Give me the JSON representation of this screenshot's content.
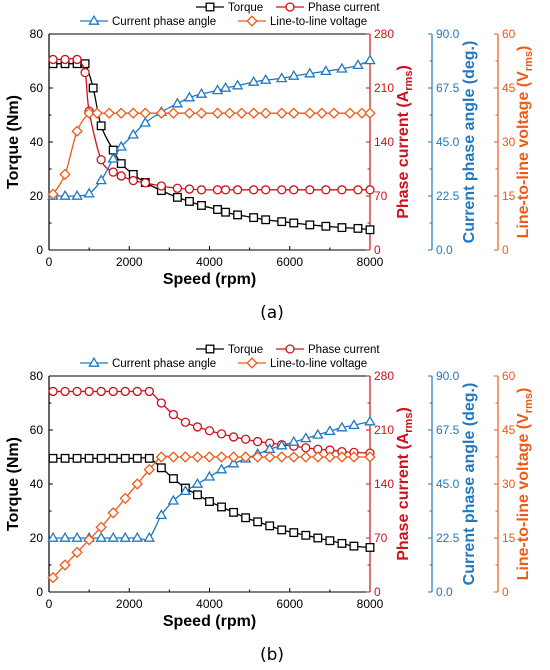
{
  "chart_data": [
    {
      "panel_label": "(a)",
      "type": "line",
      "xlabel": "Speed (rpm)",
      "xlim": [
        0,
        8000
      ],
      "x_ticks": [
        "0",
        "2000",
        "4000",
        "6000",
        "8000"
      ],
      "axes": [
        {
          "id": "torque",
          "label": "Torque (Nm)",
          "side": "left",
          "color": "#000000",
          "lim": [
            0,
            80
          ],
          "ticks": [
            "0",
            "20",
            "40",
            "60",
            "80"
          ]
        },
        {
          "id": "current",
          "label": "Phase current (A",
          "label_sub": "rms",
          "label_tail": ")",
          "side": "right",
          "color": "#d0101b",
          "lim": [
            0,
            280
          ],
          "ticks": [
            "0",
            "70",
            "140",
            "210",
            "280"
          ]
        },
        {
          "id": "angle",
          "label": "Current phase angle (deg.)",
          "side": "right",
          "color": "#1f78c1",
          "lim": [
            0,
            90
          ],
          "ticks": [
            "0.0",
            "22.5",
            "45.0",
            "67.5",
            "90.0"
          ]
        },
        {
          "id": "voltage",
          "label": "Line-to-line voltage (V",
          "label_sub": "rms",
          "label_tail": ")",
          "side": "right",
          "color": "#f05a14",
          "lim": [
            0,
            60
          ],
          "ticks": [
            "0",
            "15",
            "30",
            "45",
            "60"
          ]
        }
      ],
      "series": [
        {
          "name": "Torque",
          "axis": "torque",
          "color": "#000000",
          "marker": "square",
          "x": [
            100,
            400,
            700,
            900,
            1100,
            1300,
            1600,
            1800,
            2100,
            2400,
            2800,
            3200,
            3500,
            3800,
            4200,
            4400,
            4700,
            5100,
            5400,
            5800,
            6100,
            6500,
            6900,
            7300,
            7700,
            8000
          ],
          "y": [
            69,
            69,
            69,
            69,
            60,
            46,
            37,
            32,
            28,
            25,
            22,
            19.5,
            18,
            16.5,
            15,
            14,
            13,
            12,
            11.2,
            10.5,
            10,
            9.3,
            8.8,
            8.3,
            8,
            7.5
          ]
        },
        {
          "name": "Phase current",
          "axis": "current",
          "color": "#d0101b",
          "marker": "circle",
          "x": [
            100,
            400,
            700,
            900,
            1000,
            1300,
            1600,
            1800,
            2100,
            2400,
            2800,
            3200,
            3500,
            3800,
            4200,
            4400,
            4700,
            5100,
            5400,
            5800,
            6100,
            6500,
            6900,
            7300,
            7700,
            8000
          ],
          "y": [
            247,
            247,
            247,
            230,
            180,
            117,
            101,
            96,
            90,
            87,
            83,
            80,
            79,
            78,
            78,
            78,
            78,
            78,
            78,
            78,
            78,
            78,
            78,
            78,
            78,
            78
          ]
        },
        {
          "name": "Current phase angle",
          "axis": "angle",
          "color": "#1f78c1",
          "marker": "triangle",
          "x": [
            100,
            400,
            700,
            1000,
            1300,
            1600,
            1800,
            2100,
            2400,
            2800,
            3200,
            3500,
            3800,
            4200,
            4400,
            4700,
            5100,
            5400,
            5800,
            6100,
            6500,
            6900,
            7300,
            7700,
            8000
          ],
          "y": [
            22.5,
            22.5,
            22.5,
            23.5,
            29,
            38,
            43,
            48,
            53,
            57.5,
            61,
            63.5,
            65,
            66.5,
            67.5,
            68.5,
            70,
            70.8,
            71.5,
            72.5,
            73.5,
            74.5,
            75.5,
            77,
            79
          ]
        },
        {
          "name": "Line-to-line voltage",
          "axis": "voltage",
          "color": "#f05a14",
          "marker": "diamond",
          "x": [
            100,
            400,
            700,
            1000,
            1200,
            1500,
            1800,
            2100,
            2400,
            2800,
            3100,
            3500,
            3800,
            4200,
            4500,
            4800,
            5100,
            5400,
            5800,
            6100,
            6500,
            6800,
            7100,
            7500,
            7800,
            8000
          ],
          "y": [
            15.5,
            21,
            33,
            38,
            38,
            38,
            38,
            38,
            38,
            38,
            38,
            38,
            38,
            38,
            38,
            38,
            38,
            38,
            38,
            38,
            38,
            38,
            38,
            38,
            38,
            38
          ]
        }
      ]
    },
    {
      "panel_label": "(b)",
      "type": "line",
      "xlabel": "Speed (rpm)",
      "xlim": [
        0,
        8000
      ],
      "x_ticks": [
        "0",
        "2000",
        "4000",
        "6000",
        "8000"
      ],
      "axes": [
        {
          "id": "torque",
          "label": "Torque (Nm)",
          "side": "left",
          "color": "#000000",
          "lim": [
            0,
            80
          ],
          "ticks": [
            "0",
            "20",
            "40",
            "60",
            "80"
          ]
        },
        {
          "id": "current",
          "label": "Phase current (A",
          "label_sub": "rms",
          "label_tail": ")",
          "side": "right",
          "color": "#d0101b",
          "lim": [
            0,
            280
          ],
          "ticks": [
            "0",
            "70",
            "140",
            "210",
            "280"
          ]
        },
        {
          "id": "angle",
          "label": "Current phase angle (deg.)",
          "side": "right",
          "color": "#1f78c1",
          "lim": [
            0,
            90
          ],
          "ticks": [
            "0.0",
            "22.5",
            "45.0",
            "67.5",
            "90.0"
          ]
        },
        {
          "id": "voltage",
          "label": "Line-to-line voltage (V",
          "label_sub": "rms",
          "label_tail": ")",
          "side": "right",
          "color": "#f05a14",
          "lim": [
            0,
            60
          ],
          "ticks": [
            "0",
            "15",
            "30",
            "45",
            "60"
          ]
        }
      ],
      "series": [
        {
          "name": "Torque",
          "axis": "torque",
          "color": "#000000",
          "marker": "square",
          "x": [
            100,
            400,
            700,
            1000,
            1300,
            1600,
            1900,
            2200,
            2500,
            2800,
            3100,
            3400,
            3700,
            4000,
            4300,
            4600,
            4900,
            5200,
            5500,
            5800,
            6100,
            6400,
            6700,
            7000,
            7300,
            7600,
            8000
          ],
          "y": [
            49.5,
            49.5,
            49.5,
            49.5,
            49.5,
            49.5,
            49.5,
            49.5,
            49.5,
            46,
            42,
            38.5,
            36,
            33.5,
            31.5,
            29.5,
            27.5,
            26,
            24.5,
            23,
            22,
            21,
            20,
            19,
            18,
            17,
            16.5
          ]
        },
        {
          "name": "Phase current",
          "axis": "current",
          "color": "#d0101b",
          "marker": "circle",
          "x": [
            100,
            400,
            700,
            1000,
            1300,
            1600,
            1900,
            2200,
            2500,
            2800,
            3100,
            3400,
            3700,
            4000,
            4300,
            4600,
            4900,
            5200,
            5500,
            5800,
            6100,
            6400,
            6700,
            7000,
            7300,
            7600,
            8000
          ],
          "y": [
            260,
            260,
            260,
            260,
            260,
            260,
            260,
            260,
            260,
            245,
            230,
            220,
            214,
            209,
            205,
            201,
            198,
            195,
            193,
            191,
            189,
            187,
            185,
            184,
            182,
            181,
            180
          ]
        },
        {
          "name": "Current phase angle",
          "axis": "angle",
          "color": "#1f78c1",
          "marker": "triangle",
          "x": [
            100,
            400,
            700,
            1000,
            1300,
            1600,
            1900,
            2200,
            2500,
            2800,
            3100,
            3400,
            3700,
            4000,
            4300,
            4600,
            4900,
            5200,
            5500,
            5800,
            6100,
            6400,
            6700,
            7000,
            7300,
            7600,
            8000
          ],
          "y": [
            22.5,
            22.5,
            22.5,
            22.5,
            22.5,
            22.5,
            22.5,
            22.5,
            22.5,
            32,
            38,
            42,
            45,
            48,
            51,
            53.5,
            55.5,
            57.5,
            59.5,
            61,
            62.5,
            64,
            65.5,
            67,
            68.5,
            69.5,
            71
          ]
        },
        {
          "name": "Line-to-line voltage",
          "axis": "voltage",
          "color": "#f05a14",
          "marker": "diamond",
          "x": [
            100,
            400,
            700,
            1000,
            1300,
            1600,
            1900,
            2200,
            2500,
            2800,
            3100,
            3400,
            3700,
            4000,
            4300,
            4600,
            4900,
            5200,
            5500,
            5800,
            6100,
            6400,
            6700,
            7000,
            7300,
            7600,
            8000
          ],
          "y": [
            4,
            7.5,
            11,
            14.5,
            18,
            22,
            26,
            30,
            34,
            37.5,
            37.5,
            37.5,
            37.5,
            37.5,
            37.5,
            37.5,
            37.5,
            37.5,
            37.5,
            37.5,
            37.5,
            37.5,
            37.5,
            37.5,
            37.5,
            37.5,
            37.5
          ]
        }
      ]
    }
  ]
}
